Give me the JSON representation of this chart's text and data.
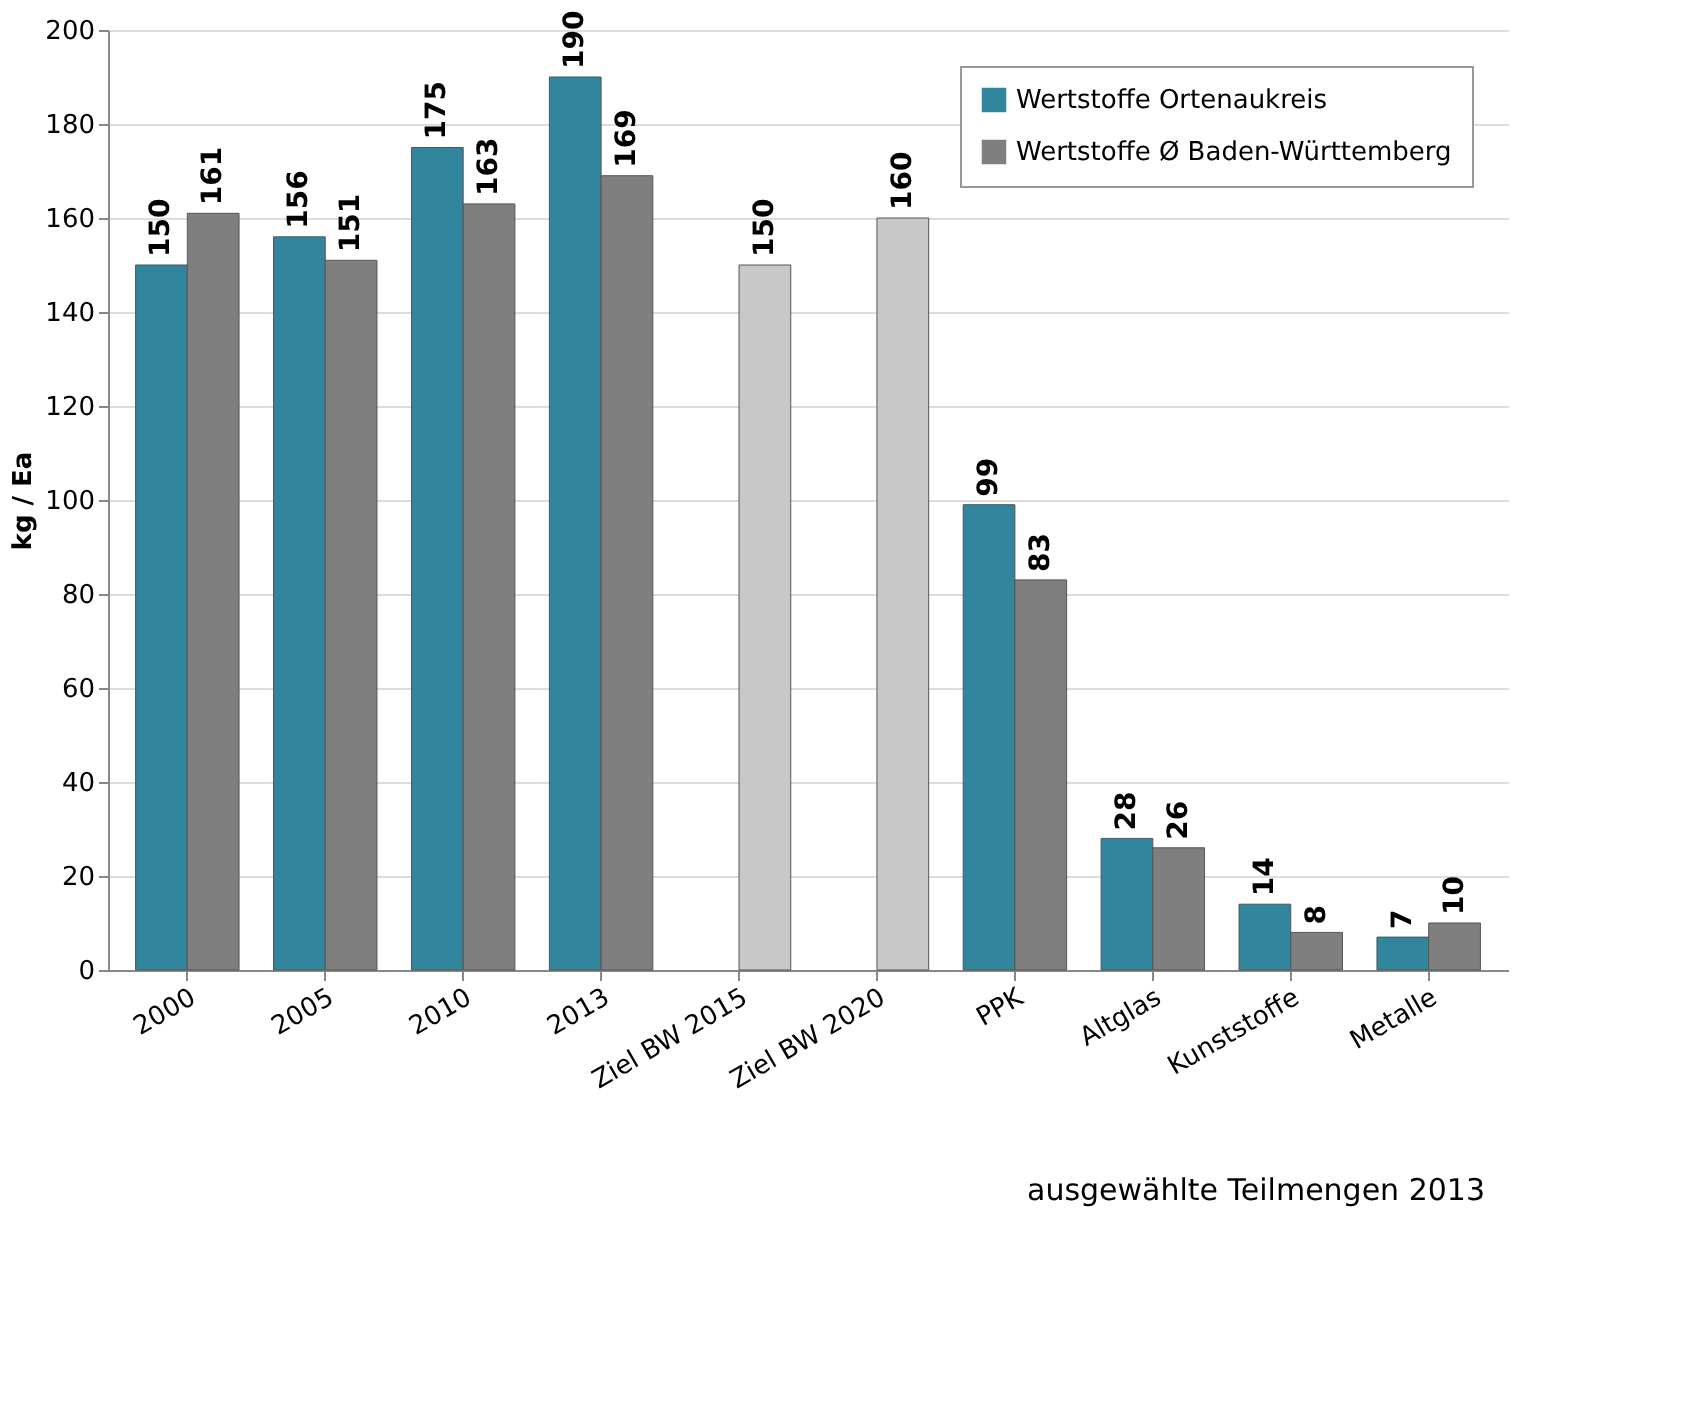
{
  "chart_data": {
    "type": "bar",
    "categories": [
      "2000",
      "2005",
      "2010",
      "2013",
      "Ziel BW  2015",
      "Ziel BW  2020",
      "PPK",
      "Altglas",
      "Kunststoffe",
      "Metalle"
    ],
    "series": [
      {
        "name": "Wertstoffe Ortenaukreis",
        "color": "#31859c",
        "values": [
          150,
          156,
          175,
          190,
          null,
          null,
          99,
          28,
          14,
          7
        ]
      },
      {
        "name": "Wertstoffe Ø Baden-Württemberg",
        "color": "#7f7f7f",
        "colors": [
          "#7f7f7f",
          "#7f7f7f",
          "#7f7f7f",
          "#7f7f7f",
          "#c8c8c8",
          "#c8c8c8",
          "#7f7f7f",
          "#7f7f7f",
          "#7f7f7f",
          "#7f7f7f"
        ],
        "values": [
          161,
          151,
          163,
          169,
          150,
          160,
          83,
          26,
          8,
          10
        ]
      }
    ],
    "ylabel": "kg / Ea",
    "ylim": [
      0,
      200
    ],
    "yticks": [
      0,
      20,
      40,
      60,
      80,
      100,
      120,
      140,
      160,
      180,
      200
    ],
    "grid": "y",
    "legend": "top right",
    "data_labels": true,
    "annotations": [
      {
        "text": "ausgewählte Teilmengen 2013"
      }
    ]
  }
}
